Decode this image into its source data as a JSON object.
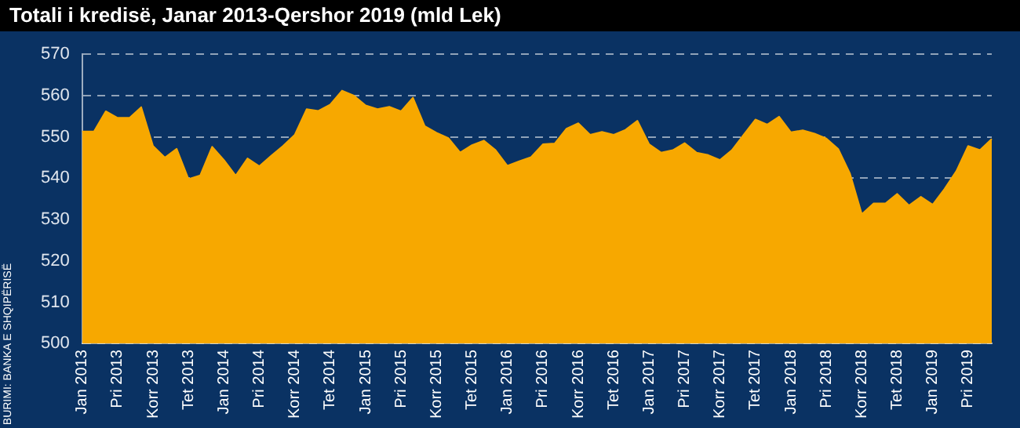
{
  "chart_data": {
    "type": "area",
    "title": "Totali i kredisë, Janar 2013-Qershor 2019 (mld Lek)",
    "annotations": [
      "BURIMI: BANKA E SHQIPËRISË"
    ],
    "categories": [
      "Jan 2013",
      null,
      null,
      "Pri 2013",
      null,
      null,
      "Korr 2013",
      null,
      null,
      "Tet 2013",
      null,
      null,
      "Jan 2014",
      null,
      null,
      "Pri 2014",
      null,
      null,
      "Korr 2014",
      null,
      null,
      "Tet 2014",
      null,
      null,
      "Jan 2015",
      null,
      null,
      "Pri 2015",
      null,
      null,
      "Korr 2015",
      null,
      null,
      "Tet 2015",
      null,
      null,
      "Jan 2016",
      null,
      null,
      "Pri 2016",
      null,
      null,
      "Korr 2016",
      null,
      null,
      "Tet 2016",
      null,
      null,
      "Jan 2017",
      null,
      null,
      "Pri 2017",
      null,
      null,
      "Korr 2017",
      null,
      null,
      "Tet 2017",
      null,
      null,
      "Jan 2018",
      null,
      null,
      "Pri 2018",
      null,
      null,
      "Korr 2018",
      null,
      null,
      "Tet 2018",
      null,
      null,
      "Jan 2019",
      null,
      null,
      "Pri 2019",
      null,
      null
    ],
    "series": [
      {
        "color": "#f7a800",
        "values": [
          551.3,
          551.3,
          556.2,
          554.6,
          554.6,
          557.2,
          547.8,
          545,
          547.1,
          539.8,
          540.7,
          547.6,
          544.4,
          540.6,
          544.8,
          542.9,
          545.4,
          547.8,
          550.5,
          556.7,
          556.3,
          557.8,
          561.2,
          560,
          557.6,
          556.7,
          557.3,
          556.2,
          559.5,
          552.6,
          551,
          549.7,
          546.2,
          548,
          549.1,
          546.8,
          543,
          544.1,
          545.1,
          548.2,
          548.4,
          552,
          553.3,
          550.5,
          551.2,
          550.5,
          551.7,
          553.9,
          548.2,
          546.2,
          546.8,
          548.5,
          546.2,
          545.6,
          544.4,
          546.8,
          550.5,
          554.2,
          553,
          554.9,
          551.1,
          551.6,
          550.8,
          549.6,
          547.1,
          541.1,
          531.3,
          533.9,
          533.9,
          536.2,
          533.4,
          535.5,
          533.6,
          537.4,
          541.7,
          547.8,
          546.8,
          549.5
        ]
      }
    ],
    "ylim": [
      500,
      570
    ],
    "yticks": [
      500,
      510,
      520,
      530,
      540,
      550,
      560,
      570
    ],
    "grid": "y",
    "legend": false
  }
}
